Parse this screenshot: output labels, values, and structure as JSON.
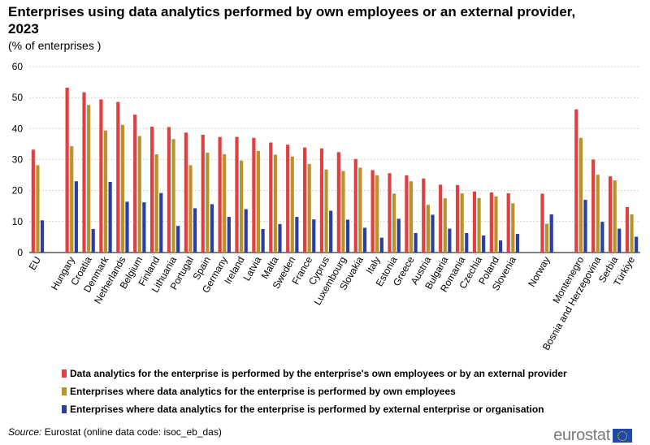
{
  "title": "Enterprises using data analytics performed by own employees or an external provider, 2023",
  "subtitle": "(% of enterprises )",
  "source_label": "Source:",
  "source_text": " Eurostat (online data code: isoc_eb_das)",
  "logo_text": "eurostat",
  "chart_data": {
    "type": "bar",
    "ylim": [
      0,
      60
    ],
    "yticks": [
      0,
      10,
      20,
      30,
      40,
      50,
      60
    ],
    "grid": true,
    "legend_position": "bottom",
    "categories": [
      "EU",
      "",
      "Hungary",
      "Croatia",
      "Denmark",
      "Netherlands",
      "Belgium",
      "Finland",
      "Lithuania",
      "Portugal",
      "Spain",
      "Germany",
      "Ireland",
      "Latvia",
      "Malta",
      "Sweden",
      "France",
      "Cyprus",
      "Luxembourg",
      "Slovakia",
      "Italy",
      "Estonia",
      "Greece",
      "Austria",
      "Bulgaria",
      "Romania",
      "Czechia",
      "Poland",
      "Slovenia",
      "",
      "Norway",
      "",
      "Montenegro",
      "Bosnia and Herzegovina",
      "Serbia",
      "Türkiye"
    ],
    "series": [
      {
        "name": "Data analytics for the enterprise is performed by the enterprise's own employees or by an external provider",
        "color": "#e0403f",
        "values": [
          33.2,
          null,
          53.2,
          51.7,
          49.4,
          48.6,
          44.5,
          40.6,
          40.5,
          38.7,
          38.0,
          37.3,
          37.3,
          37.0,
          35.5,
          34.8,
          33.9,
          33.6,
          32.4,
          30.2,
          26.6,
          25.6,
          24.9,
          23.9,
          21.9,
          21.8,
          19.7,
          19.4,
          19.1,
          null,
          19.0,
          null,
          46.2,
          30.0,
          24.6,
          14.7
        ]
      },
      {
        "name": "Enterprises where data analytics for the enterprise is performed by own employees",
        "color": "#b9932a",
        "values": [
          28.2,
          null,
          34.3,
          47.6,
          39.4,
          41.2,
          37.6,
          31.7,
          36.6,
          28.2,
          32.2,
          31.7,
          29.7,
          32.8,
          31.6,
          31.0,
          28.6,
          26.8,
          26.3,
          27.4,
          24.9,
          19.0,
          23.0,
          15.4,
          17.5,
          19.1,
          17.6,
          18.1,
          15.9,
          null,
          9.3,
          null,
          37.0,
          25.1,
          23.3,
          12.3
        ]
      },
      {
        "name": "Enterprises where data analytics for the enterprise is performed by external enterprise or organisation",
        "color": "#2b3ea3",
        "values": [
          10.4,
          null,
          23.0,
          7.6,
          22.8,
          16.4,
          16.2,
          19.2,
          8.6,
          14.3,
          15.6,
          11.5,
          14.0,
          7.6,
          9.2,
          11.5,
          10.7,
          13.5,
          10.6,
          8.0,
          4.8,
          10.9,
          6.3,
          12.2,
          7.7,
          6.3,
          5.5,
          3.9,
          6.0,
          null,
          12.3,
          null,
          17.0,
          9.9,
          7.7,
          5.1
        ]
      }
    ]
  }
}
